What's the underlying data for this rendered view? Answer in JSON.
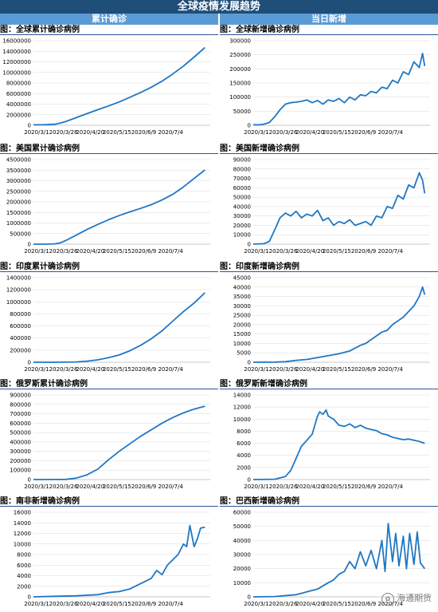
{
  "header": {
    "title": "全球疫情发展趋势",
    "col_left": "累计确诊",
    "col_right": "当日新增"
  },
  "colors": {
    "line": "#1f77c4",
    "banner": "#1f4e79",
    "subheader": "#5b9bd5",
    "rule": "#2f5597"
  },
  "watermark": {
    "text": "海通期货"
  },
  "chart_data": [
    {
      "id": "global-cum",
      "type": "line",
      "title": "图：全球累计确诊病例",
      "x_ticks": [
        "2020/3/1",
        "2020/3/26",
        "2020/4/20",
        "2020/5/15",
        "2020/6/9",
        "2020/7/4"
      ],
      "ylim": [
        0,
        16000000
      ],
      "y_ticks": [
        "0",
        "2000000",
        "4000000",
        "6000000",
        "8000000",
        "10000000",
        "12000000",
        "14000000",
        "16000000"
      ],
      "x": [
        0,
        10,
        20,
        25,
        30,
        40,
        50,
        60,
        70,
        80,
        90,
        100,
        110,
        120,
        130,
        140,
        150,
        160
      ],
      "values": [
        87000,
        110000,
        200000,
        420000,
        700000,
        1450000,
        2200000,
        2950000,
        3650000,
        4400000,
        5300000,
        6200000,
        7200000,
        8350000,
        9700000,
        11200000,
        12900000,
        14700000
      ]
    },
    {
      "id": "global-new",
      "type": "line",
      "title": "图：全球新增确诊病例",
      "x_ticks": [
        "2020/3/1",
        "2020/3/26",
        "2020/4/20",
        "2020/5/15",
        "2020/6/9",
        "2020/7/4"
      ],
      "ylim": [
        0,
        300000
      ],
      "y_ticks": [
        "0",
        "50000",
        "100000",
        "150000",
        "200000",
        "250000",
        "300000"
      ],
      "x": [
        0,
        5,
        10,
        15,
        20,
        25,
        30,
        35,
        40,
        45,
        50,
        55,
        60,
        65,
        70,
        75,
        80,
        85,
        90,
        95,
        100,
        105,
        110,
        115,
        120,
        125,
        130,
        135,
        140,
        145,
        150,
        155,
        158,
        160
      ],
      "values": [
        2000,
        1500,
        4000,
        10000,
        30000,
        55000,
        75000,
        80000,
        82000,
        85000,
        90000,
        80000,
        88000,
        75000,
        90000,
        85000,
        95000,
        80000,
        100000,
        90000,
        108000,
        105000,
        120000,
        115000,
        135000,
        130000,
        160000,
        150000,
        190000,
        180000,
        225000,
        205000,
        255000,
        210000
      ]
    },
    {
      "id": "us-cum",
      "type": "line",
      "title": "图：美国累计确诊病例",
      "x_ticks": [
        "2020/3/1",
        "2020/3/26",
        "2020/4/20",
        "2020/5/15",
        "2020/6/9",
        "2020/7/4"
      ],
      "ylim": [
        0,
        4500000
      ],
      "y_ticks": [
        "0",
        "500000",
        "1000000",
        "1500000",
        "2000000",
        "2500000",
        "3000000",
        "3500000",
        "4500000"
      ],
      "x": [
        0,
        10,
        20,
        25,
        30,
        40,
        50,
        60,
        70,
        80,
        90,
        100,
        110,
        120,
        130,
        140,
        150,
        160
      ],
      "values": [
        0,
        500,
        15000,
        70000,
        190000,
        480000,
        780000,
        1050000,
        1300000,
        1520000,
        1720000,
        1900000,
        2100000,
        2350000,
        2650000,
        3050000,
        3500000,
        3950000
      ]
    },
    {
      "id": "us-new",
      "type": "line",
      "title": "图：美国新增确诊病例",
      "x_ticks": [
        "2020/3/1",
        "2020/3/26",
        "2020/4/20",
        "2020/5/15",
        "2020/6/9",
        "2020/7/4"
      ],
      "ylim": [
        0,
        90000
      ],
      "y_ticks": [
        "0",
        "10000",
        "20000",
        "30000",
        "40000",
        "50000",
        "60000",
        "70000",
        "80000",
        "90000"
      ],
      "x": [
        0,
        10,
        15,
        20,
        25,
        30,
        35,
        40,
        45,
        50,
        55,
        60,
        65,
        70,
        75,
        80,
        85,
        90,
        95,
        100,
        105,
        110,
        115,
        120,
        125,
        130,
        135,
        140,
        145,
        150,
        155,
        158,
        160
      ],
      "values": [
        0,
        500,
        3000,
        15000,
        28000,
        33000,
        30000,
        35000,
        28000,
        32000,
        30000,
        36000,
        25000,
        28000,
        20000,
        24000,
        22000,
        26000,
        20000,
        22000,
        24000,
        20000,
        30000,
        28000,
        40000,
        38000,
        52000,
        48000,
        63000,
        60000,
        76000,
        68000,
        54000
      ]
    },
    {
      "id": "india-cum",
      "type": "line",
      "title": "图：印度累计确诊病例",
      "x_ticks": [
        "2020/3/1",
        "2020/3/26",
        "2020/4/20",
        "2020/5/15",
        "2020/6/9",
        "2020/7/4"
      ],
      "ylim": [
        0,
        1400000
      ],
      "y_ticks": [
        "0",
        "200000",
        "400000",
        "600000",
        "800000",
        "1000000",
        "1200000",
        "1400000"
      ],
      "x": [
        0,
        20,
        40,
        50,
        60,
        70,
        80,
        90,
        100,
        110,
        120,
        130,
        140,
        150,
        160
      ],
      "values": [
        0,
        500,
        5000,
        18000,
        40000,
        75000,
        120000,
        190000,
        280000,
        390000,
        520000,
        680000,
        840000,
        980000,
        1150000
      ]
    },
    {
      "id": "india-new",
      "type": "line",
      "title": "图：印度新增确诊病例",
      "x_ticks": [
        "2020/3/1",
        "2020/3/26",
        "2020/4/20",
        "2020/5/15",
        "2020/6/9",
        "2020/7/4"
      ],
      "ylim": [
        0,
        45000
      ],
      "y_ticks": [
        "0",
        "5000",
        "10000",
        "15000",
        "20000",
        "25000",
        "30000",
        "35000",
        "40000",
        "45000"
      ],
      "x": [
        0,
        20,
        30,
        40,
        50,
        60,
        70,
        80,
        90,
        100,
        105,
        110,
        115,
        120,
        125,
        130,
        135,
        140,
        145,
        150,
        155,
        158,
        160
      ],
      "values": [
        0,
        100,
        300,
        1000,
        1500,
        2500,
        3500,
        4500,
        6000,
        9000,
        10000,
        12000,
        14000,
        16000,
        17000,
        20000,
        22000,
        24000,
        27000,
        30000,
        35000,
        40000,
        36000
      ]
    },
    {
      "id": "russia-cum",
      "type": "line",
      "title": "图：俄罗斯累计确诊病例",
      "x_ticks": [
        "2020/3/1",
        "2020/3/26",
        "2020/4/20",
        "2020/5/15",
        "2020/6/9",
        "2020/7/4"
      ],
      "ylim": [
        0,
        900000
      ],
      "y_ticks": [
        "0",
        "100000",
        "200000",
        "300000",
        "400000",
        "500000",
        "600000",
        "700000",
        "800000",
        "900000"
      ],
      "x": [
        0,
        20,
        30,
        40,
        50,
        60,
        70,
        80,
        90,
        100,
        110,
        120,
        130,
        140,
        150,
        160
      ],
      "values": [
        0,
        500,
        2000,
        15000,
        50000,
        110000,
        210000,
        300000,
        380000,
        460000,
        530000,
        600000,
        660000,
        710000,
        750000,
        780000
      ]
    },
    {
      "id": "russia-new",
      "type": "line",
      "title": "图：俄罗斯新增确诊病例",
      "x_ticks": [
        "2020/3/1",
        "2020/3/26",
        "2020/4/20",
        "2020/5/15",
        "2020/6/9",
        "2020/7/4"
      ],
      "ylim": [
        0,
        14000
      ],
      "y_ticks": [
        "0",
        "2000",
        "4000",
        "6000",
        "8000",
        "10000",
        "12000",
        "14000"
      ],
      "x": [
        0,
        20,
        30,
        35,
        40,
        45,
        50,
        55,
        60,
        62,
        65,
        68,
        70,
        75,
        80,
        85,
        90,
        95,
        100,
        105,
        110,
        115,
        120,
        125,
        130,
        135,
        140,
        145,
        150,
        155,
        160
      ],
      "values": [
        0,
        50,
        500,
        1500,
        3500,
        5500,
        6500,
        7500,
        10500,
        11200,
        10800,
        11500,
        10500,
        10000,
        9000,
        8800,
        9200,
        8600,
        9000,
        8500,
        8300,
        8100,
        7600,
        7400,
        7000,
        6800,
        6600,
        6700,
        6500,
        6300,
        6000
      ]
    },
    {
      "id": "sa-new",
      "type": "line",
      "title": "图：南非新增确诊病例",
      "x_ticks": [
        "2020/3/1",
        "2020/3/26",
        "2020/4/20",
        "2020/5/15",
        "2020/6/9",
        "2020/7/4"
      ],
      "ylim": [
        0,
        16000
      ],
      "y_ticks": [
        "0",
        "2000",
        "4000",
        "6000",
        "8000",
        "10000",
        "12000",
        "14000",
        "16000"
      ],
      "x": [
        0,
        20,
        40,
        60,
        70,
        80,
        90,
        100,
        110,
        115,
        120,
        125,
        130,
        135,
        140,
        143,
        146,
        150,
        153,
        156,
        160
      ],
      "values": [
        0,
        100,
        200,
        400,
        800,
        1000,
        1500,
        2500,
        3500,
        5000,
        4200,
        6000,
        7000,
        8000,
        10000,
        9500,
        13500,
        9500,
        11000,
        13000,
        13200
      ]
    },
    {
      "id": "brazil-new",
      "type": "line",
      "title": "图：巴西新增确诊病例",
      "x_ticks": [
        "2020/3/1",
        "2020/3/26",
        "2020/4/20",
        "2020/5/15",
        "2020/6/9",
        "2020/7/4"
      ],
      "ylim": [
        0,
        60000
      ],
      "y_ticks": [
        "0",
        "10000",
        "20000",
        "30000",
        "40000",
        "50000",
        "60000"
      ],
      "x": [
        0,
        20,
        40,
        50,
        60,
        70,
        75,
        80,
        85,
        90,
        95,
        100,
        105,
        110,
        115,
        120,
        123,
        126,
        130,
        133,
        136,
        140,
        143,
        146,
        150,
        153,
        156,
        160
      ],
      "values": [
        0,
        200,
        1500,
        3500,
        5500,
        10000,
        12000,
        16000,
        18000,
        25000,
        20000,
        32000,
        22000,
        33000,
        20000,
        40000,
        18000,
        52000,
        25000,
        45000,
        22000,
        43000,
        20000,
        45000,
        23000,
        46000,
        24000,
        20000
      ]
    }
  ]
}
